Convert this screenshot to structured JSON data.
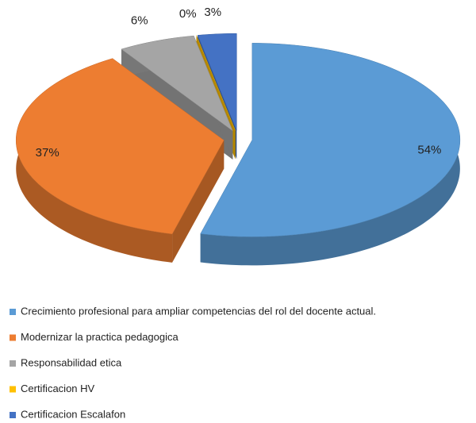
{
  "chart_data": {
    "type": "pie3d",
    "categories": [
      "Crecimiento profesional para ampliar competencias del rol del docente actual.",
      "Modernizar la practica pedagogica",
      "Responsabilidad etica",
      "Certificacion HV",
      "Certificacion Escalafon"
    ],
    "values": [
      54,
      37,
      6,
      0,
      3
    ],
    "value_labels": [
      "54%",
      "37%",
      "6%",
      "0%",
      "3%"
    ],
    "colors": [
      "#5b9bd5",
      "#ed7d31",
      "#a5a5a5",
      "#ffc000",
      "#4472c4"
    ],
    "legend": "bottom"
  }
}
